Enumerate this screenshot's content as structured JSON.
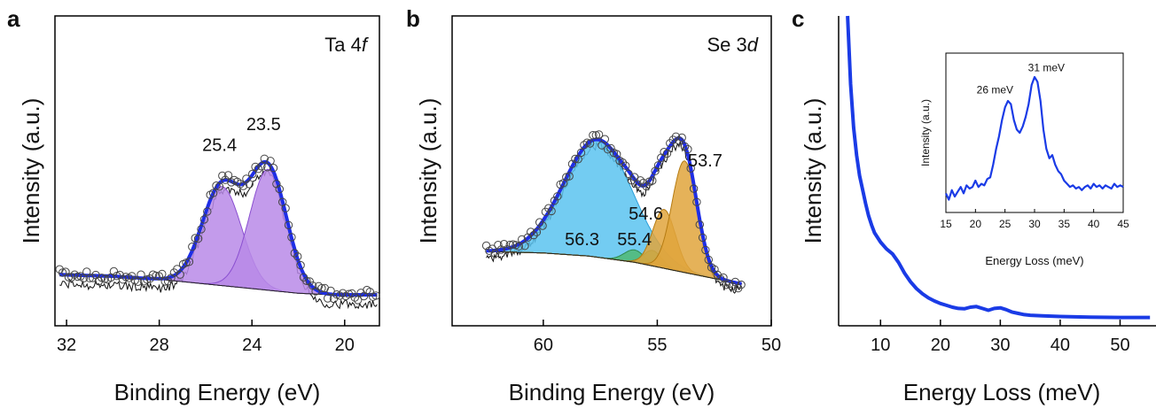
{
  "chart_data": [
    {
      "panel_letter": "a",
      "type": "scatter",
      "annotation": {
        "element": "Ta 4",
        "orbital": "f"
      },
      "xlabel": "Binding Energy (eV)",
      "ylabel": "Intensity (a.u.)",
      "xlim": [
        32.5,
        18.5
      ],
      "x_reversed": true,
      "xticks": [
        32,
        28,
        24,
        20
      ],
      "ylim": [
        0,
        1
      ],
      "peak_labels": [
        {
          "text": "25.4",
          "x": 25.4
        },
        {
          "text": "23.5",
          "x": 23.5
        }
      ],
      "colors": {
        "fit": "#1f2ee6",
        "component_fill": "#b889e8",
        "component_edge": "#8a4fd0",
        "raw": "#111111",
        "points": "#444444"
      },
      "background": {
        "x": [
          32.3,
          30,
          28,
          26,
          24,
          22,
          20.5,
          18.6
        ],
        "y": [
          0.165,
          0.16,
          0.15,
          0.135,
          0.12,
          0.105,
          0.1,
          0.1
        ]
      },
      "components": [
        {
          "center": 25.3,
          "sigma": 0.85,
          "amplitude": 0.32
        },
        {
          "center": 23.3,
          "sigma": 0.8,
          "amplitude": 0.39
        }
      ],
      "raw_offset": -0.03,
      "points_step": 0.13
    },
    {
      "panel_letter": "b",
      "type": "scatter",
      "annotation": {
        "element": "Se 3",
        "orbital": "d"
      },
      "xlabel": "Binding Energy (eV)",
      "ylabel": "Intensity (a.u.)",
      "xlim": [
        64,
        50
      ],
      "x_reversed": true,
      "xticks": [
        60,
        55,
        50
      ],
      "ylim": [
        0,
        1
      ],
      "peak_labels": [
        {
          "text": "56.3",
          "x": 58.3
        },
        {
          "text": "55.4",
          "x": 56.0
        },
        {
          "text": "54.6",
          "x": 55.5
        },
        {
          "text": "53.7",
          "x": 52.9
        }
      ],
      "colors": {
        "fit": "#1f2ee6",
        "component_fill": "#5bc3f0",
        "component_edge": "#2b9ed8",
        "raw": "#111111",
        "points": "#444444"
      },
      "background": {
        "x": [
          62.5,
          60,
          58,
          56,
          54,
          52,
          51.3
        ],
        "y": [
          0.24,
          0.235,
          0.225,
          0.205,
          0.175,
          0.145,
          0.135
        ]
      },
      "components": [
        {
          "center": 57.6,
          "sigma": 1.5,
          "amplitude": 0.38,
          "fill": "#5bc3f0",
          "edge": "#2b9ed8"
        },
        {
          "center": 56.0,
          "sigma": 0.45,
          "amplitude": 0.04,
          "fill": "#4fb873",
          "edge": "#2d8a4c"
        },
        {
          "center": 55.2,
          "sigma": 0.4,
          "amplitude": 0.05,
          "fill": "#4fb873",
          "edge": "#2d8a4c"
        },
        {
          "center": 54.7,
          "sigma": 0.5,
          "amplitude": 0.19,
          "fill": "#e0a53c",
          "edge": "#b57b12"
        },
        {
          "center": 53.8,
          "sigma": 0.55,
          "amplitude": 0.36,
          "fill": "#e0a53c",
          "edge": "#b57b12"
        }
      ],
      "raw_offset": -0.02,
      "points_step": 0.13
    },
    {
      "panel_letter": "c",
      "type": "line",
      "xlabel": "Energy Loss (meV)",
      "ylabel": "Intensity (a.u.)",
      "xlim": [
        3,
        56
      ],
      "xticks": [
        10,
        20,
        30,
        40,
        50
      ],
      "ylim": [
        0,
        1
      ],
      "colors": {
        "line": "#1a3be6"
      },
      "x": [
        4.5,
        5,
        5.5,
        6,
        6.5,
        7,
        7.5,
        8,
        8.5,
        9,
        10,
        11,
        12,
        13,
        14,
        15,
        16,
        17,
        18,
        19,
        20,
        21,
        22,
        23,
        24,
        25,
        26,
        27,
        28,
        29,
        30,
        31,
        32,
        33,
        34,
        35,
        37,
        40,
        45,
        50,
        55
      ],
      "y": [
        1.0,
        0.78,
        0.64,
        0.55,
        0.485,
        0.44,
        0.395,
        0.355,
        0.325,
        0.3,
        0.27,
        0.248,
        0.232,
        0.205,
        0.17,
        0.142,
        0.12,
        0.103,
        0.09,
        0.08,
        0.072,
        0.066,
        0.06,
        0.056,
        0.055,
        0.06,
        0.062,
        0.056,
        0.05,
        0.056,
        0.058,
        0.052,
        0.044,
        0.04,
        0.036,
        0.034,
        0.032,
        0.03,
        0.028,
        0.027,
        0.027
      ],
      "inset": {
        "type": "line",
        "xlabel": "Energy Loss (meV)",
        "ylabel": "Intensity (a.u.)",
        "xlim": [
          15,
          45
        ],
        "xticks": [
          15,
          20,
          25,
          30,
          35,
          40,
          45
        ],
        "ylim": [
          0,
          1
        ],
        "peak_labels": [
          {
            "text": "26 meV",
            "x": 26
          },
          {
            "text": "31 meV",
            "x": 30.5
          }
        ],
        "x": [
          15,
          15.5,
          16,
          16.5,
          17,
          17.5,
          18,
          18.5,
          19,
          19.5,
          20,
          20.5,
          21,
          21.5,
          22,
          22.5,
          23,
          23.5,
          24,
          24.5,
          25,
          25.5,
          26,
          26.5,
          27,
          27.5,
          28,
          28.5,
          29,
          29.5,
          30,
          30.5,
          31,
          31.5,
          32,
          32.5,
          33,
          33.5,
          34,
          34.5,
          35,
          35.5,
          36,
          36.5,
          37,
          37.5,
          38,
          38.5,
          39,
          39.5,
          40,
          40.5,
          41,
          41.5,
          42,
          42.5,
          43,
          43.5,
          44,
          44.5,
          45
        ],
        "y": [
          0.12,
          0.08,
          0.14,
          0.1,
          0.13,
          0.16,
          0.12,
          0.17,
          0.15,
          0.16,
          0.2,
          0.16,
          0.18,
          0.17,
          0.21,
          0.22,
          0.3,
          0.4,
          0.48,
          0.58,
          0.66,
          0.7,
          0.68,
          0.58,
          0.52,
          0.5,
          0.54,
          0.6,
          0.68,
          0.8,
          0.85,
          0.82,
          0.7,
          0.52,
          0.4,
          0.34,
          0.36,
          0.3,
          0.26,
          0.24,
          0.2,
          0.18,
          0.16,
          0.17,
          0.15,
          0.16,
          0.14,
          0.16,
          0.17,
          0.15,
          0.18,
          0.16,
          0.17,
          0.15,
          0.17,
          0.16,
          0.15,
          0.18,
          0.16,
          0.17,
          0.16
        ]
      }
    }
  ]
}
